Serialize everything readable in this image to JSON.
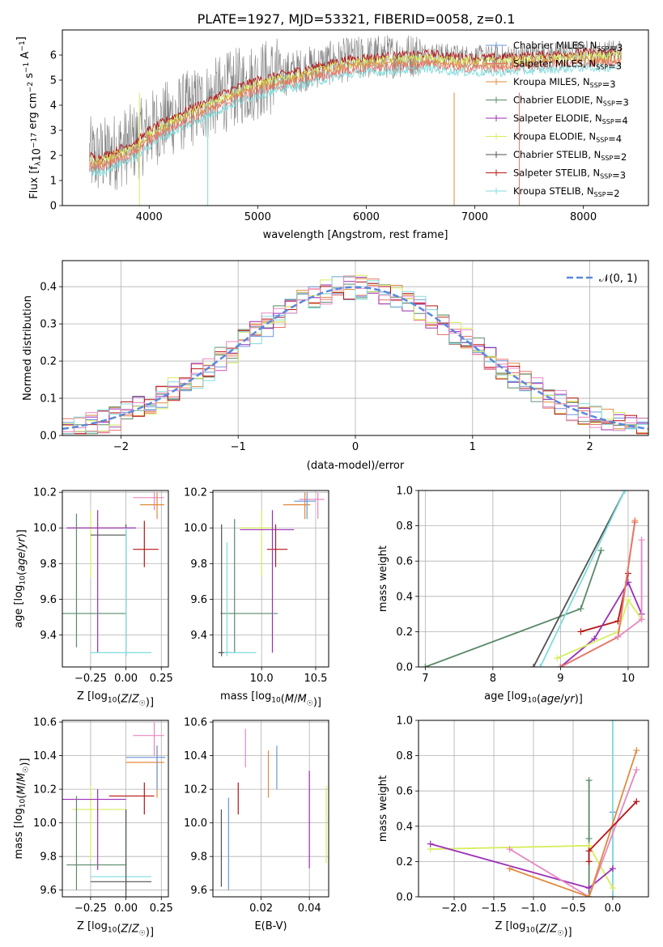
{
  "title": "PLATE=1927, MJD=53321, FIBERID=0058, z=0.1",
  "colors": {
    "chabrier_miles": "#6b96d8",
    "salpeter_miles": "#e8746c",
    "kroupa_miles": "#e08a3c",
    "chabrier_elodie": "#5a8a6a",
    "salpeter_elodie": "#9b2fb8",
    "kroupa_elodie": "#d6ee5c",
    "chabrier_stelib": "#505050",
    "salpeter_stelib": "#b81414",
    "kroupa_stelib": "#7edcdc",
    "pink": "#e887c0",
    "data": "#808080",
    "normal": "#5a8adc"
  },
  "chart_data": [
    {
      "id": "spectrum",
      "type": "line",
      "title": "PLATE=1927, MJD=53321, FIBERID=0058, z=0.1",
      "xlabel": "wavelength [Angstrom, rest frame]",
      "ylabel": "Flux [f_λ 10^-17 erg cm^-2 s^-1 A^-1]",
      "xlim": [
        3200,
        8600
      ],
      "ylim": [
        0,
        7
      ],
      "xticks": [
        4000,
        5000,
        6000,
        7000,
        8000
      ],
      "yticks": [
        0,
        1,
        2,
        3,
        4,
        5,
        6
      ],
      "grid": false,
      "legend": "right",
      "legend_entries": [
        "Chabrier MILES, N_SSP=3",
        "Salpeter MILES, N_SSP=3",
        "Kroupa MILES, N_SSP=3",
        "Chabrier ELODIE, N_SSP=3",
        "Salpeter ELODIE, N_SSP=4",
        "Kroupa ELODIE, N_SSP=4",
        "Chabrier STELIB, N_SSP=2",
        "Salpeter STELIB, N_SSP=3",
        "Kroupa STELIB, N_SSP=2"
      ],
      "legend_labels": [
        {
          "name": "Chabrier MILES, N",
          "sub": "SSP",
          "rest": "=3"
        },
        {
          "name": "Salpeter MILES, N",
          "sub": "SSP",
          "rest": "=3"
        },
        {
          "name": "Kroupa MILES, N",
          "sub": "SSP",
          "rest": "=3"
        },
        {
          "name": "Chabrier ELODIE, N",
          "sub": "SSP",
          "rest": "=3"
        },
        {
          "name": "Salpeter ELODIE, N",
          "sub": "SSP",
          "rest": "=4"
        },
        {
          "name": "Kroupa ELODIE, N",
          "sub": "SSP",
          "rest": "=4"
        },
        {
          "name": "Chabrier STELIB, N",
          "sub": "SSP",
          "rest": "=2"
        },
        {
          "name": "Salpeter STELIB, N",
          "sub": "SSP",
          "rest": "=3"
        },
        {
          "name": "Kroupa STELIB, N",
          "sub": "SSP",
          "rest": "=2"
        }
      ],
      "model_envelope": {
        "x": [
          3450,
          3500,
          3600,
          3700,
          3800,
          3900,
          4000,
          4200,
          4400,
          4600,
          4800,
          5000,
          5200,
          5400,
          5600,
          5800,
          6000,
          6200,
          6400,
          6600,
          6800,
          7000,
          7200,
          7400,
          7600,
          7800,
          8000,
          8200,
          8350
        ],
        "y": [
          2.0,
          1.9,
          2.0,
          2.2,
          2.4,
          2.6,
          3.0,
          3.5,
          3.9,
          4.3,
          4.7,
          5.0,
          5.2,
          5.4,
          5.6,
          5.8,
          5.9,
          5.95,
          6.0,
          6.05,
          5.95,
          5.9,
          5.9,
          5.95,
          6.0,
          6.05,
          6.1,
          6.1,
          6.15
        ]
      },
      "data_range": [
        3450,
        8350
      ]
    },
    {
      "id": "histogram",
      "type": "bar",
      "xlabel": "(data-model)/error",
      "ylabel": "Normed distribution",
      "xlim": [
        -2.5,
        2.5
      ],
      "ylim": [
        0,
        0.47
      ],
      "xticks": [
        -2,
        -1,
        0,
        1,
        2
      ],
      "yticks": [
        0.0,
        0.1,
        0.2,
        0.3,
        0.4
      ],
      "grid": true,
      "legend": "top-right",
      "normal_label": "𝒩(0, 1)",
      "bins": 50
    },
    {
      "id": "age_vs_Z",
      "type": "scatter",
      "xlabel": "Z [log10(Z/Z☉)]",
      "ylabel": "age [log10(age/yr)]",
      "xlim": [
        -0.45,
        0.3
      ],
      "ylim": [
        9.22,
        10.21
      ],
      "xticks": [
        -0.25,
        0.0,
        0.25
      ],
      "yticks": [
        9.4,
        9.6,
        9.8,
        10.0,
        10.2
      ],
      "points": [
        {
          "s": "salpeter_stelib",
          "x": 0.13,
          "xe": [
            0.05,
            0.23
          ],
          "y": 9.88,
          "ye": [
            9.78,
            10.04
          ]
        },
        {
          "s": "kroupa_elodie",
          "x": -0.25,
          "xe": [
            -0.38,
            0.0
          ],
          "y": 10.0,
          "ye": [
            9.72,
            10.1
          ]
        },
        {
          "s": "salpeter_elodie",
          "x": -0.2,
          "xe": [
            -0.42,
            0.07
          ],
          "y": 10.0,
          "ye": [
            9.3,
            10.1
          ]
        },
        {
          "s": "chabrier_elodie",
          "x": -0.35,
          "xe": [
            -0.45,
            0.0
          ],
          "y": 9.52,
          "ye": [
            9.33,
            10.08
          ]
        },
        {
          "s": "chabrier_stelib",
          "x": 0.0,
          "xe": [
            -0.25,
            0.0
          ],
          "y": 9.96,
          "ye": [
            9.28,
            10.02
          ]
        },
        {
          "s": "kroupa_stelib",
          "x": 0.0,
          "xe": [
            -0.25,
            0.18
          ],
          "y": 9.3,
          "ye": [
            9.28,
            10.0
          ]
        },
        {
          "s": "pink",
          "x": 0.2,
          "xe": [
            0.05,
            0.27
          ],
          "y": 10.17,
          "ye": [
            10.1,
            10.2
          ]
        },
        {
          "s": "kroupa_miles",
          "x": 0.22,
          "xe": [
            0.1,
            0.27
          ],
          "y": 10.13,
          "ye": [
            10.05,
            10.2
          ]
        }
      ]
    },
    {
      "id": "age_vs_mass",
      "type": "scatter",
      "xlabel": "mass [log10(M/M☉)]",
      "ylabel": "",
      "xlim": [
        9.55,
        10.62
      ],
      "ylim": [
        9.22,
        10.21
      ],
      "xticks": [
        10.0,
        10.5
      ],
      "yticks": [
        9.4,
        9.6,
        9.8,
        10.0,
        10.2
      ],
      "points": [
        {
          "s": "salpeter_stelib",
          "x": 10.13,
          "xe": [
            10.05,
            10.24
          ],
          "y": 9.88,
          "ye": [
            9.78,
            10.02
          ]
        },
        {
          "s": "kroupa_elodie",
          "x": 10.0,
          "xe": [
            9.8,
            10.1
          ],
          "y": 10.0,
          "ye": [
            9.73,
            10.1
          ]
        },
        {
          "s": "salpeter_elodie",
          "x": 10.1,
          "xe": [
            9.8,
            10.3
          ],
          "y": 9.99,
          "ye": [
            9.3,
            10.1
          ]
        },
        {
          "s": "chabrier_elodie",
          "x": 9.75,
          "xe": [
            9.62,
            10.15
          ],
          "y": 9.52,
          "ye": [
            9.3,
            10.05
          ]
        },
        {
          "s": "chabrier_stelib",
          "x": 9.63,
          "xe": [
            9.6,
            9.72
          ],
          "y": 9.3,
          "ye": [
            9.28,
            10.02
          ]
        },
        {
          "s": "kroupa_stelib",
          "x": 9.68,
          "xe": [
            9.65,
            9.95
          ],
          "y": 9.3,
          "ye": [
            9.28,
            9.92
          ]
        },
        {
          "s": "pink",
          "x": 10.52,
          "xe": [
            10.35,
            10.58
          ],
          "y": 10.16,
          "ye": [
            10.05,
            10.2
          ]
        },
        {
          "s": "kroupa_miles",
          "x": 10.4,
          "xe": [
            10.2,
            10.45
          ],
          "y": 10.13,
          "ye": [
            10.05,
            10.2
          ]
        },
        {
          "s": "chabrier_miles",
          "x": 10.42,
          "xe": [
            10.3,
            10.5
          ],
          "y": 10.15,
          "ye": [
            10.05,
            10.2
          ]
        }
      ]
    },
    {
      "id": "mass_weight_vs_age",
      "type": "line",
      "xlabel": "age [log10(age/yr)]",
      "ylabel": "mass weight",
      "xlim": [
        6.9,
        10.3
      ],
      "ylim": [
        0,
        1
      ],
      "xticks": [
        7,
        8,
        9,
        10
      ],
      "yticks": [
        0.0,
        0.2,
        0.4,
        0.6,
        0.8,
        1.0
      ],
      "grid": true,
      "series": [
        {
          "s": "chabrier_elodie",
          "x": [
            7.0,
            9.3,
            9.6
          ],
          "y": [
            0.0,
            0.33,
            0.66
          ]
        },
        {
          "s": "chabrier_stelib",
          "x": [
            8.6,
            9.95
          ],
          "y": [
            0.0,
            1.0
          ]
        },
        {
          "s": "kroupa_stelib",
          "x": [
            8.7,
            9.95
          ],
          "y": [
            0.0,
            1.0
          ]
        },
        {
          "s": "salpeter_stelib",
          "x": [
            9.3,
            9.85,
            10.0
          ],
          "y": [
            0.2,
            0.26,
            0.53
          ]
        },
        {
          "s": "salpeter_elodie",
          "x": [
            9.0,
            9.5,
            10.0,
            10.2
          ],
          "y": [
            0.0,
            0.16,
            0.48,
            0.3
          ]
        },
        {
          "s": "kroupa_elodie",
          "x": [
            8.95,
            9.85,
            10.0,
            10.2
          ],
          "y": [
            0.05,
            0.2,
            0.38,
            0.27
          ]
        },
        {
          "s": "kroupa_miles",
          "x": [
            9.0,
            9.85,
            10.1
          ],
          "y": [
            0.0,
            0.17,
            0.83
          ]
        },
        {
          "s": "salpeter_miles",
          "x": [
            9.0,
            9.85,
            10.1
          ],
          "y": [
            0.0,
            0.17,
            0.82
          ]
        },
        {
          "s": "pink",
          "x": [
            9.85,
            10.2,
            10.2
          ],
          "y": [
            0.17,
            0.27,
            0.72
          ]
        }
      ]
    },
    {
      "id": "mass_vs_Z",
      "type": "scatter",
      "xlabel": "Z [log10(Z/Z☉)]",
      "ylabel": "mass [log10(M/M☉)]",
      "xlim": [
        -0.45,
        0.3
      ],
      "ylim": [
        9.56,
        10.61
      ],
      "xticks": [
        -0.25,
        0.0,
        0.25
      ],
      "yticks": [
        9.6,
        9.8,
        10.0,
        10.2,
        10.4,
        10.6
      ],
      "points": [
        {
          "s": "salpeter_stelib",
          "x": 0.13,
          "xe": [
            -0.12,
            0.2
          ],
          "y": 10.16,
          "ye": [
            10.05,
            10.24
          ]
        },
        {
          "s": "kroupa_elodie",
          "x": -0.25,
          "xe": [
            -0.38,
            0.0
          ],
          "y": 10.08,
          "ye": [
            9.78,
            10.22
          ]
        },
        {
          "s": "salpeter_elodie",
          "x": -0.2,
          "xe": [
            -0.45,
            0.0
          ],
          "y": 10.14,
          "ye": [
            9.72,
            10.2
          ]
        },
        {
          "s": "chabrier_elodie",
          "x": -0.35,
          "xe": [
            -0.42,
            0.0
          ],
          "y": 9.75,
          "ye": [
            9.6,
            10.16
          ]
        },
        {
          "s": "kroupa_stelib",
          "x": 0.0,
          "xe": [
            -0.25,
            0.18
          ],
          "y": 9.68,
          "ye": [
            9.58,
            10.08
          ]
        },
        {
          "s": "chabrier_stelib",
          "x": 0.0,
          "xe": [
            -0.25,
            0.18
          ],
          "y": 9.65,
          "ye": [
            9.56,
            10.08
          ]
        },
        {
          "s": "pink",
          "x": 0.2,
          "xe": [
            0.05,
            0.27
          ],
          "y": 10.52,
          "ye": [
            10.4,
            10.6
          ]
        },
        {
          "s": "kroupa_miles",
          "x": 0.22,
          "xe": [
            0.0,
            0.27
          ],
          "y": 10.36,
          "ye": [
            10.15,
            10.46
          ]
        },
        {
          "s": "chabrier_miles",
          "x": 0.22,
          "xe": [
            0.0,
            0.28
          ],
          "y": 10.39,
          "ye": [
            10.2,
            10.46
          ]
        }
      ]
    },
    {
      "id": "mass_vs_ebv",
      "type": "scatter",
      "xlabel": "E(B-V)",
      "ylabel": "",
      "xlim": [
        0.0,
        0.048
      ],
      "ylim": [
        9.56,
        10.61
      ],
      "xticks": [
        0.02,
        0.04
      ],
      "yticks": [
        9.6,
        9.8,
        10.0,
        10.2,
        10.4,
        10.6
      ],
      "points": [
        {
          "s": "chabrier_stelib",
          "x": 0.0035,
          "ye": [
            9.62,
            10.08
          ]
        },
        {
          "s": "chabrier_miles",
          "x": 0.0065,
          "ye": [
            9.6,
            10.15
          ]
        },
        {
          "s": "salpeter_stelib",
          "x": 0.0105,
          "ye": [
            10.05,
            10.24
          ]
        },
        {
          "s": "pink",
          "x": 0.0135,
          "ye": [
            10.33,
            10.56
          ]
        },
        {
          "s": "kroupa_miles",
          "x": 0.023,
          "ye": [
            10.15,
            10.43
          ]
        },
        {
          "s": "chabrier_miles",
          "x": 0.0265,
          "ye": [
            10.2,
            10.46
          ]
        },
        {
          "s": "salpeter_elodie",
          "x": 0.04,
          "ye": [
            9.73,
            10.31
          ]
        },
        {
          "s": "kroupa_elodie",
          "x": 0.047,
          "ye": [
            9.76,
            10.22
          ]
        }
      ]
    },
    {
      "id": "mass_weight_vs_Z",
      "type": "line",
      "xlabel": "Z [log10(Z/Z☉)]",
      "ylabel": "mass weight",
      "xlim": [
        -2.45,
        0.45
      ],
      "ylim": [
        0,
        1
      ],
      "xticks": [
        -2.0,
        -1.5,
        -1.0,
        -0.5,
        0.0
      ],
      "yticks": [
        0.0,
        0.2,
        0.4,
        0.6,
        0.8,
        1.0
      ],
      "grid": true,
      "series": [
        {
          "s": "chabrier_elodie",
          "x": [
            -0.3,
            -0.3,
            -0.3
          ],
          "y": [
            0.0,
            0.33,
            0.66
          ]
        },
        {
          "s": "chabrier_miles",
          "x": [
            0.0,
            0.0
          ],
          "y": [
            0.0,
            0.48
          ]
        },
        {
          "s": "kroupa_stelib",
          "x": [
            0.0,
            0.0
          ],
          "y": [
            0.0,
            1.0
          ]
        },
        {
          "s": "kroupa_elodie",
          "x": [
            -2.3,
            -0.3,
            0.0
          ],
          "y": [
            0.27,
            0.29,
            0.05
          ]
        },
        {
          "s": "salpeter_elodie",
          "x": [
            -2.3,
            -0.3,
            0.0
          ],
          "y": [
            0.3,
            0.05,
            0.16
          ]
        },
        {
          "s": "pink",
          "x": [
            -1.3,
            -0.3,
            0.3
          ],
          "y": [
            0.27,
            0.0,
            0.72
          ]
        },
        {
          "s": "kroupa_miles",
          "x": [
            -1.3,
            -0.3,
            0.3
          ],
          "y": [
            0.16,
            0.0,
            0.83
          ]
        },
        {
          "s": "salpeter_stelib",
          "x": [
            -0.3,
            -0.3,
            0.3
          ],
          "y": [
            0.2,
            0.26,
            0.54
          ]
        }
      ]
    }
  ]
}
